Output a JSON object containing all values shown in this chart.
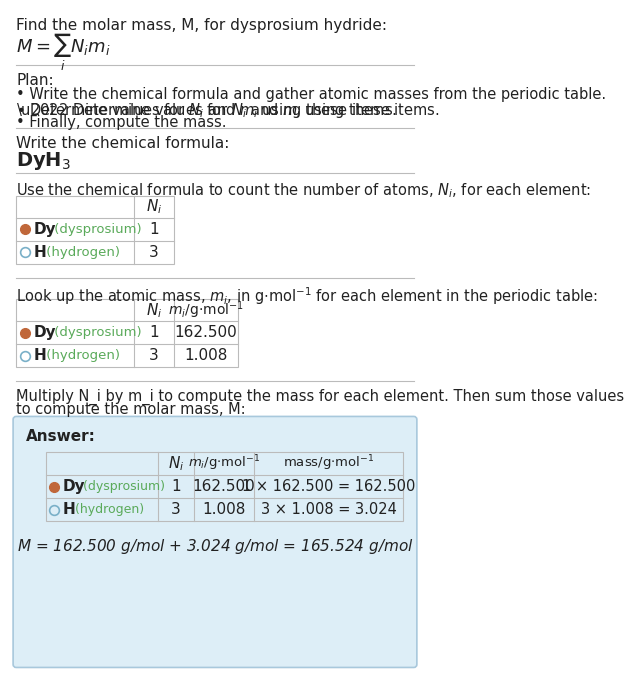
{
  "title_line1": "Find the molar mass, M, for dysprosium hydride:",
  "plan_header": "Plan:",
  "plan_bullets": [
    "• Write the chemical formula and gather atomic masses from the periodic table.",
    "• Determine values for N_i and m_i using these items.",
    "• Finally, compute the mass."
  ],
  "formula_section": "Write the chemical formula:",
  "count_section": "Use the chemical formula to count the number of atoms, N_i, for each element:",
  "lookup_section": "Look up the atomic mass, m_i, in g·mol⁻¹ for each element in the periodic table:",
  "multiply_section_l1": "Multiply N_i by m_i to compute the mass for each element. Then sum those values",
  "multiply_section_l2": "to compute the molar mass, M:",
  "answer_label": "Answer:",
  "elements": [
    {
      "symbol": "Dy",
      "name": "dysprosium",
      "Ni": 1,
      "mi": "162.500",
      "dot_color": "#c0673a",
      "dot_filled": true
    },
    {
      "symbol": "H",
      "name": "hydrogen",
      "Ni": 3,
      "mi": "1.008",
      "dot_color": "#7ab0c8",
      "dot_filled": false
    }
  ],
  "mass_calc": [
    "1 × 162.500 = 162.500",
    "3 × 1.008 = 3.024"
  ],
  "final_answer": "M = 162.500 g/mol + 3.024 g/mol = 165.524 g/mol",
  "answer_bg": "#ddeef7",
  "answer_border": "#a8c8dc",
  "bg_color": "#ffffff",
  "text_color": "#222222",
  "element_name_color": "#5aaa5a",
  "table_border": "#cccccc"
}
